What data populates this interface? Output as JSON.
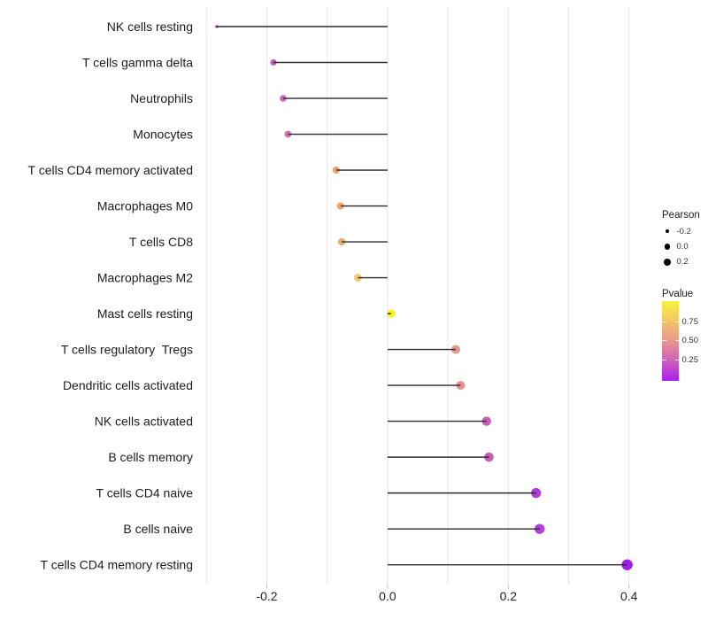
{
  "chart_data": {
    "type": "lollipop",
    "orientation": "horizontal",
    "title": "",
    "xlabel": "",
    "ylabel": "",
    "xlim": [
      -0.32,
      0.435
    ],
    "grid": "vertical-light",
    "x_axis": {
      "tick_values": [
        -0.2,
        0.0,
        0.2,
        0.4
      ],
      "tick_labels": [
        "-0.2",
        "0.0",
        "0.2",
        "0.4"
      ],
      "gridline_values": [
        -0.3,
        -0.2,
        -0.1,
        0.0,
        0.1,
        0.2,
        0.3,
        0.4
      ]
    },
    "points": [
      {
        "label": "NK cells resting",
        "pearson": -0.283,
        "dot_color": "#8F2DC4",
        "dot_radius_px": 1.6
      },
      {
        "label": "T cells gamma delta",
        "pearson": -0.189,
        "dot_color": "#C55FBD",
        "dot_radius_px": 3.6
      },
      {
        "label": "Neutrophils",
        "pearson": -0.173,
        "dot_color": "#CE69B6",
        "dot_radius_px": 3.8
      },
      {
        "label": "Monocytes",
        "pearson": -0.165,
        "dot_color": "#D36FB2",
        "dot_radius_px": 3.9
      },
      {
        "label": "T cells CD4 memory activated",
        "pearson": -0.085,
        "dot_color": "#EBA46D",
        "dot_radius_px": 4.1
      },
      {
        "label": "Macrophages M0",
        "pearson": -0.078,
        "dot_color": "#EDA96E",
        "dot_radius_px": 4.2
      },
      {
        "label": "T cells CD8",
        "pearson": -0.076,
        "dot_color": "#EDAC71",
        "dot_radius_px": 4.2
      },
      {
        "label": "Macrophages M2",
        "pearson": -0.049,
        "dot_color": "#F3C968",
        "dot_radius_px": 4.4
      },
      {
        "label": "Mast cells resting",
        "pearson": 0.006,
        "dot_color": "#F8F522",
        "dot_radius_px": 4.7
      },
      {
        "label": "T cells regulatory  Tregs",
        "pearson": 0.113,
        "dot_color": "#E79789",
        "dot_radius_px": 5.0
      },
      {
        "label": "Dendritic cells activated",
        "pearson": 0.121,
        "dot_color": "#E78F8E",
        "dot_radius_px": 5.0
      },
      {
        "label": "NK cells activated",
        "pearson": 0.164,
        "dot_color": "#C95FB1",
        "dot_radius_px": 5.2
      },
      {
        "label": "B cells memory",
        "pearson": 0.168,
        "dot_color": "#C75DB4",
        "dot_radius_px": 5.3
      },
      {
        "label": "T cells CD4 naive",
        "pearson": 0.246,
        "dot_color": "#AE3CDB",
        "dot_radius_px": 5.6
      },
      {
        "label": "B cells naive",
        "pearson": 0.252,
        "dot_color": "#B13FDE",
        "dot_radius_px": 5.7
      },
      {
        "label": "T cells CD4 memory resting",
        "pearson": 0.397,
        "dot_color": "#9F1FE9",
        "dot_radius_px": 6.2
      }
    ],
    "legend": {
      "size": {
        "title": "Pearson",
        "entries": [
          {
            "label": "-0.2",
            "radius_px": 2.2
          },
          {
            "label": "0.0",
            "radius_px": 3.3
          },
          {
            "label": "0.2",
            "radius_px": 3.9
          }
        ]
      },
      "color": {
        "title": "Pvalue",
        "tick_labels": [
          "0.75",
          "0.50",
          "0.25"
        ],
        "gradient_stops": [
          {
            "color": "#F9F43B",
            "pos": "0%"
          },
          {
            "color": "#F2C36B",
            "pos": "26%"
          },
          {
            "color": "#E9968E",
            "pos": "50%"
          },
          {
            "color": "#CD62B9",
            "pos": "74%"
          },
          {
            "color": "#A91EF1",
            "pos": "100%"
          }
        ]
      }
    },
    "colors": {
      "stem": "#2b2b2b",
      "gridline": "#e6e6e6",
      "tick": "#c4c4c4",
      "axis_text": "#262626"
    }
  }
}
